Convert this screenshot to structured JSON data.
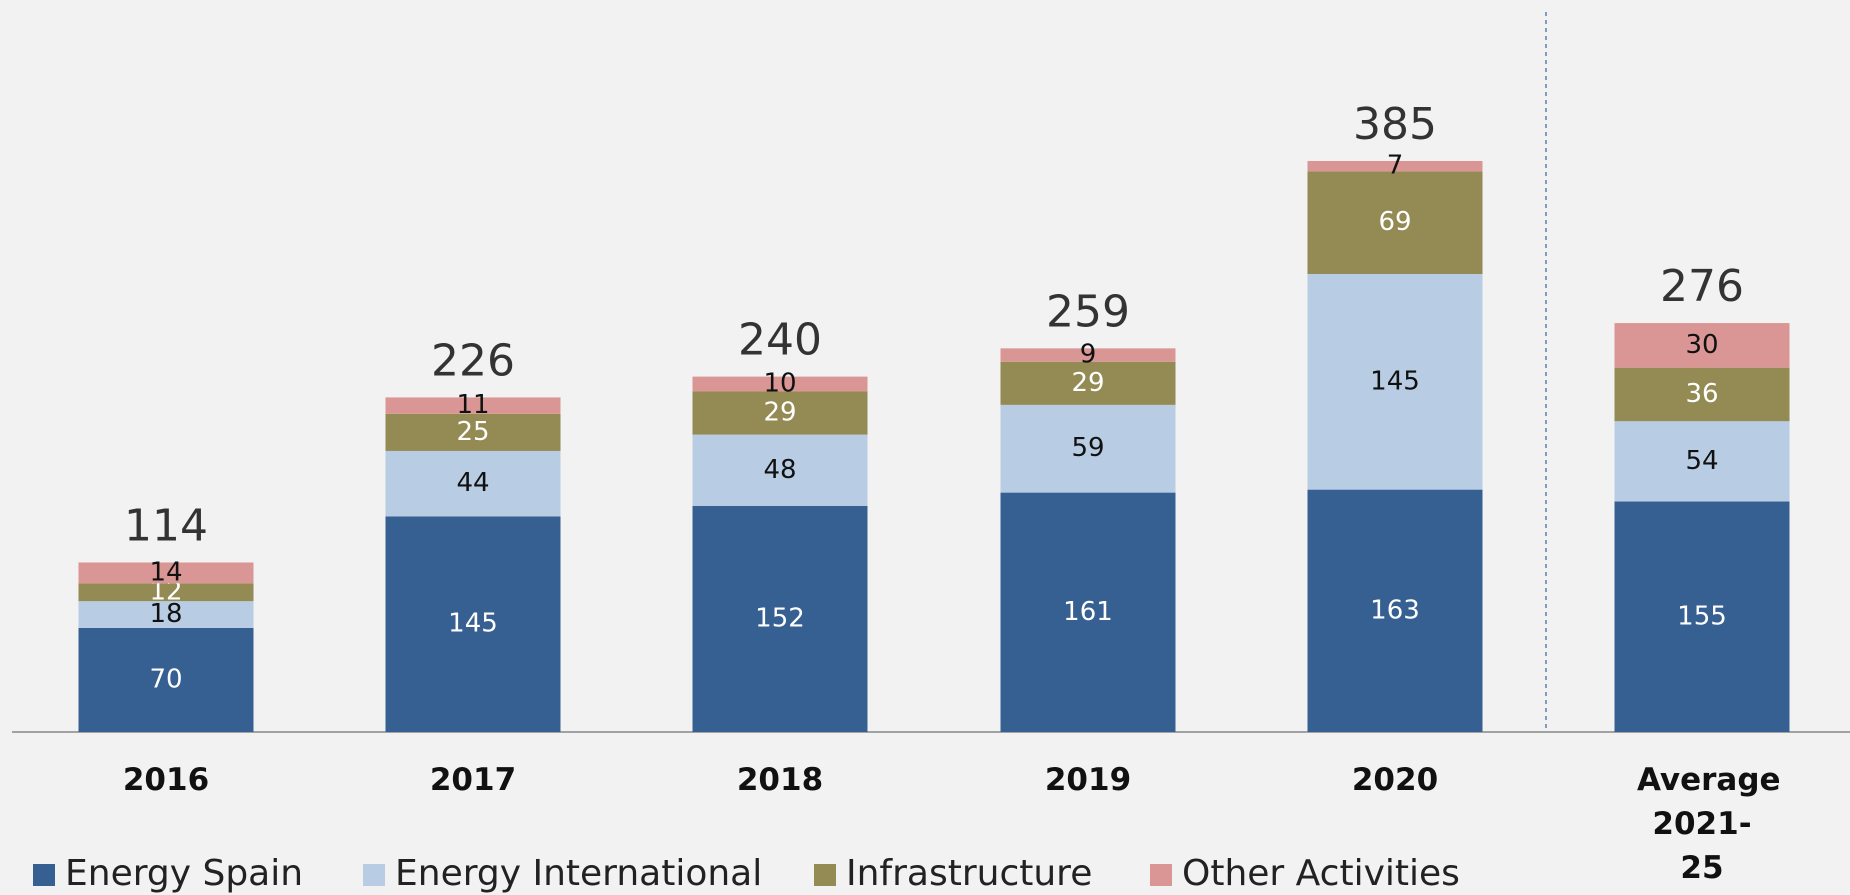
{
  "chart_data": {
    "type": "stacked_bar",
    "categories": [
      "2016",
      "2017",
      "2018",
      "2019",
      "2020",
      "Average 2021-25"
    ],
    "series": [
      {
        "name": "Energy Spain",
        "color": "#366092",
        "values": [
          70,
          145,
          152,
          161,
          163,
          155
        ]
      },
      {
        "name": "Energy International",
        "color": "#b8cce4",
        "values": [
          18,
          44,
          48,
          59,
          145,
          54
        ]
      },
      {
        "name": "Infrastructure",
        "color": "#948a54",
        "values": [
          12,
          25,
          29,
          29,
          69,
          36
        ]
      },
      {
        "name": "Other Activities",
        "color": "#da9694",
        "values": [
          14,
          11,
          10,
          9,
          7,
          30
        ]
      }
    ],
    "totals": [
      114,
      226,
      240,
      259,
      385,
      276
    ],
    "legend": "bottom"
  }
}
